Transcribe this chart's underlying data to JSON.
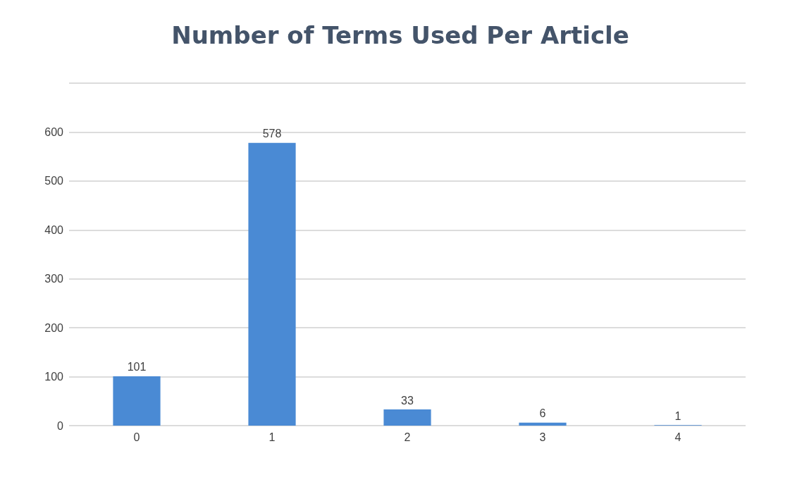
{
  "chart_data": {
    "type": "bar",
    "title": "Number of Terms Used Per Article",
    "categories": [
      "0",
      "1",
      "2",
      "3",
      "4"
    ],
    "values": [
      101,
      578,
      33,
      6,
      1
    ],
    "color": "#4a8ad4",
    "ylim": [
      0,
      700
    ],
    "yticks": [
      0,
      100,
      200,
      300,
      400,
      500,
      600,
      {
        "value": 700,
        "label": null
      }
    ],
    "grid": "y",
    "data_labels": true
  }
}
